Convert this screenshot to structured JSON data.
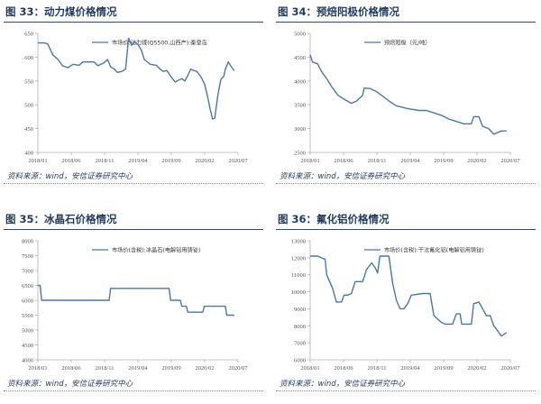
{
  "panels": [
    {
      "fig_label": "图 33",
      "fig_title": "动力煤价格情况",
      "source": "资料来源：wind，安信证券研究中心",
      "chart_data": {
        "type": "line",
        "title": "动力煤价格情况",
        "series": [
          {
            "name": "市场价:动力煤(Q5500,山西产):秦皇岛",
            "color": "#4a78a6"
          }
        ],
        "y_ticks": [
          400,
          450,
          500,
          550,
          600,
          650
        ],
        "ylim": [
          400,
          650
        ],
        "x_ticks": [
          "2018/01",
          "2018/06",
          "2018/11",
          "2019/04",
          "2019/09",
          "2020/02",
          "2020/07"
        ],
        "x_range": [
          2018.0,
          2020.67
        ],
        "points": [
          [
            2018.0,
            630
          ],
          [
            2018.08,
            630
          ],
          [
            2018.13,
            628
          ],
          [
            2018.2,
            605
          ],
          [
            2018.27,
            595
          ],
          [
            2018.33,
            582
          ],
          [
            2018.4,
            578
          ],
          [
            2018.47,
            585
          ],
          [
            2018.55,
            583
          ],
          [
            2018.6,
            590
          ],
          [
            2018.67,
            590
          ],
          [
            2018.75,
            590
          ],
          [
            2018.8,
            582
          ],
          [
            2018.88,
            588
          ],
          [
            2018.93,
            595
          ],
          [
            2018.97,
            580
          ],
          [
            2019.02,
            575
          ],
          [
            2019.06,
            568
          ],
          [
            2019.12,
            570
          ],
          [
            2019.17,
            575
          ],
          [
            2019.21,
            640
          ],
          [
            2019.25,
            625
          ],
          [
            2019.29,
            632
          ],
          [
            2019.33,
            628
          ],
          [
            2019.38,
            615
          ],
          [
            2019.42,
            595
          ],
          [
            2019.5,
            585
          ],
          [
            2019.58,
            583
          ],
          [
            2019.63,
            575
          ],
          [
            2019.67,
            570
          ],
          [
            2019.72,
            572
          ],
          [
            2019.79,
            556
          ],
          [
            2019.83,
            548
          ],
          [
            2019.88,
            552
          ],
          [
            2019.92,
            555
          ],
          [
            2019.96,
            550
          ],
          [
            2020.0,
            562
          ],
          [
            2020.04,
            575
          ],
          [
            2020.08,
            572
          ],
          [
            2020.12,
            570
          ],
          [
            2020.17,
            560
          ],
          [
            2020.22,
            545
          ],
          [
            2020.26,
            520
          ],
          [
            2020.3,
            490
          ],
          [
            2020.33,
            470
          ],
          [
            2020.36,
            472
          ],
          [
            2020.4,
            520
          ],
          [
            2020.44,
            553
          ],
          [
            2020.48,
            560
          ],
          [
            2020.5,
            575
          ],
          [
            2020.54,
            590
          ],
          [
            2020.58,
            580
          ],
          [
            2020.62,
            572
          ]
        ]
      }
    },
    {
      "fig_label": "图 34",
      "fig_title": "预焙阳极价格情况",
      "source": "资料来源：wind，安信证券研究中心",
      "chart_data": {
        "type": "line",
        "title": "预焙阳极价格情况",
        "series": [
          {
            "name": "预焙阳极（元/吨）",
            "color": "#4a78a6"
          }
        ],
        "y_ticks": [
          2500,
          3000,
          3500,
          4000,
          4500,
          5000
        ],
        "ylim": [
          2500,
          5000
        ],
        "x_ticks": [
          "2018/01",
          "2018/06",
          "2018/11",
          "2019/04",
          "2019/09",
          "2020/02",
          "2020/07"
        ],
        "x_range": [
          2018.0,
          2020.67
        ],
        "points": [
          [
            2018.0,
            4550
          ],
          [
            2018.03,
            4400
          ],
          [
            2018.1,
            4360
          ],
          [
            2018.15,
            4200
          ],
          [
            2018.22,
            4050
          ],
          [
            2018.3,
            3850
          ],
          [
            2018.37,
            3700
          ],
          [
            2018.45,
            3620
          ],
          [
            2018.55,
            3530
          ],
          [
            2018.62,
            3580
          ],
          [
            2018.7,
            3700
          ],
          [
            2018.72,
            3850
          ],
          [
            2018.8,
            3840
          ],
          [
            2018.88,
            3780
          ],
          [
            2018.95,
            3700
          ],
          [
            2019.05,
            3580
          ],
          [
            2019.15,
            3480
          ],
          [
            2019.3,
            3420
          ],
          [
            2019.45,
            3380
          ],
          [
            2019.55,
            3380
          ],
          [
            2019.65,
            3330
          ],
          [
            2019.75,
            3280
          ],
          [
            2019.85,
            3200
          ],
          [
            2019.95,
            3150
          ],
          [
            2020.05,
            3100
          ],
          [
            2020.15,
            3100
          ],
          [
            2020.18,
            3250
          ],
          [
            2020.25,
            3250
          ],
          [
            2020.3,
            3050
          ],
          [
            2020.38,
            3000
          ],
          [
            2020.45,
            2880
          ],
          [
            2020.55,
            2950
          ],
          [
            2020.62,
            2950
          ]
        ]
      }
    },
    {
      "fig_label": "图 35",
      "fig_title": "冰晶石价格情况",
      "source": "资料来源：wind，安信证券研究中心",
      "chart_data": {
        "type": "line",
        "title": "冰晶石价格情况",
        "series": [
          {
            "name": "市场价(含税):冰晶石(电解铝用铸锭)",
            "color": "#4a78a6"
          }
        ],
        "y_ticks": [
          4000,
          4500,
          5000,
          5500,
          6000,
          6500,
          7000,
          7500,
          8000
        ],
        "ylim": [
          4000,
          8000
        ],
        "x_ticks": [
          "2018/01",
          "2018/06",
          "2018/11",
          "2019/04",
          "2019/09",
          "2020/02",
          "2020/07"
        ],
        "x_range": [
          2018.0,
          2020.67
        ],
        "points": [
          [
            2018.0,
            6500
          ],
          [
            2018.03,
            6500
          ],
          [
            2018.05,
            6000
          ],
          [
            2018.95,
            6000
          ],
          [
            2018.97,
            6400
          ],
          [
            2019.75,
            6400
          ],
          [
            2019.77,
            6000
          ],
          [
            2019.9,
            6000
          ],
          [
            2019.92,
            5800
          ],
          [
            2019.98,
            5800
          ],
          [
            2020.0,
            5600
          ],
          [
            2020.2,
            5600
          ],
          [
            2020.22,
            5800
          ],
          [
            2020.5,
            5800
          ],
          [
            2020.52,
            5500
          ],
          [
            2020.62,
            5500
          ]
        ]
      }
    },
    {
      "fig_label": "图 36",
      "fig_title": "氟化铝价格情况",
      "source": "资料来源：wind，安信证券研究中心",
      "chart_data": {
        "type": "line",
        "title": "氟化铝价格情况",
        "series": [
          {
            "name": "市场价(含税):干法氟化铝(电解铝用铸锭)",
            "color": "#4a78a6"
          }
        ],
        "y_ticks": [
          6000,
          7000,
          8000,
          9000,
          10000,
          11000,
          12000,
          13000
        ],
        "ylim": [
          6000,
          13000
        ],
        "x_ticks": [
          "2018/01",
          "2018/06",
          "2018/11",
          "2019/04",
          "2019/09",
          "2020/02",
          "2020/07"
        ],
        "x_range": [
          2018.0,
          2020.67
        ],
        "points": [
          [
            2018.0,
            12100
          ],
          [
            2018.1,
            12100
          ],
          [
            2018.2,
            11900
          ],
          [
            2018.22,
            11000
          ],
          [
            2018.3,
            10200
          ],
          [
            2018.35,
            9400
          ],
          [
            2018.42,
            9400
          ],
          [
            2018.45,
            9800
          ],
          [
            2018.5,
            9800
          ],
          [
            2018.55,
            9900
          ],
          [
            2018.6,
            10600
          ],
          [
            2018.7,
            10600
          ],
          [
            2018.75,
            11300
          ],
          [
            2018.82,
            11700
          ],
          [
            2018.87,
            11400
          ],
          [
            2018.9,
            11100
          ],
          [
            2018.93,
            12100
          ],
          [
            2019.05,
            12100
          ],
          [
            2019.1,
            10500
          ],
          [
            2019.15,
            9500
          ],
          [
            2019.2,
            9000
          ],
          [
            2019.25,
            9000
          ],
          [
            2019.3,
            9300
          ],
          [
            2019.35,
            9800
          ],
          [
            2019.5,
            9900
          ],
          [
            2019.6,
            9900
          ],
          [
            2019.65,
            8600
          ],
          [
            2019.75,
            8200
          ],
          [
            2019.8,
            8100
          ],
          [
            2019.9,
            8100
          ],
          [
            2019.95,
            8700
          ],
          [
            2020.0,
            8700
          ],
          [
            2020.02,
            8100
          ],
          [
            2020.15,
            8100
          ],
          [
            2020.18,
            9300
          ],
          [
            2020.25,
            9400
          ],
          [
            2020.3,
            9000
          ],
          [
            2020.35,
            8600
          ],
          [
            2020.4,
            8600
          ],
          [
            2020.45,
            8000
          ],
          [
            2020.5,
            7700
          ],
          [
            2020.55,
            7400
          ],
          [
            2020.62,
            7600
          ]
        ]
      }
    }
  ]
}
